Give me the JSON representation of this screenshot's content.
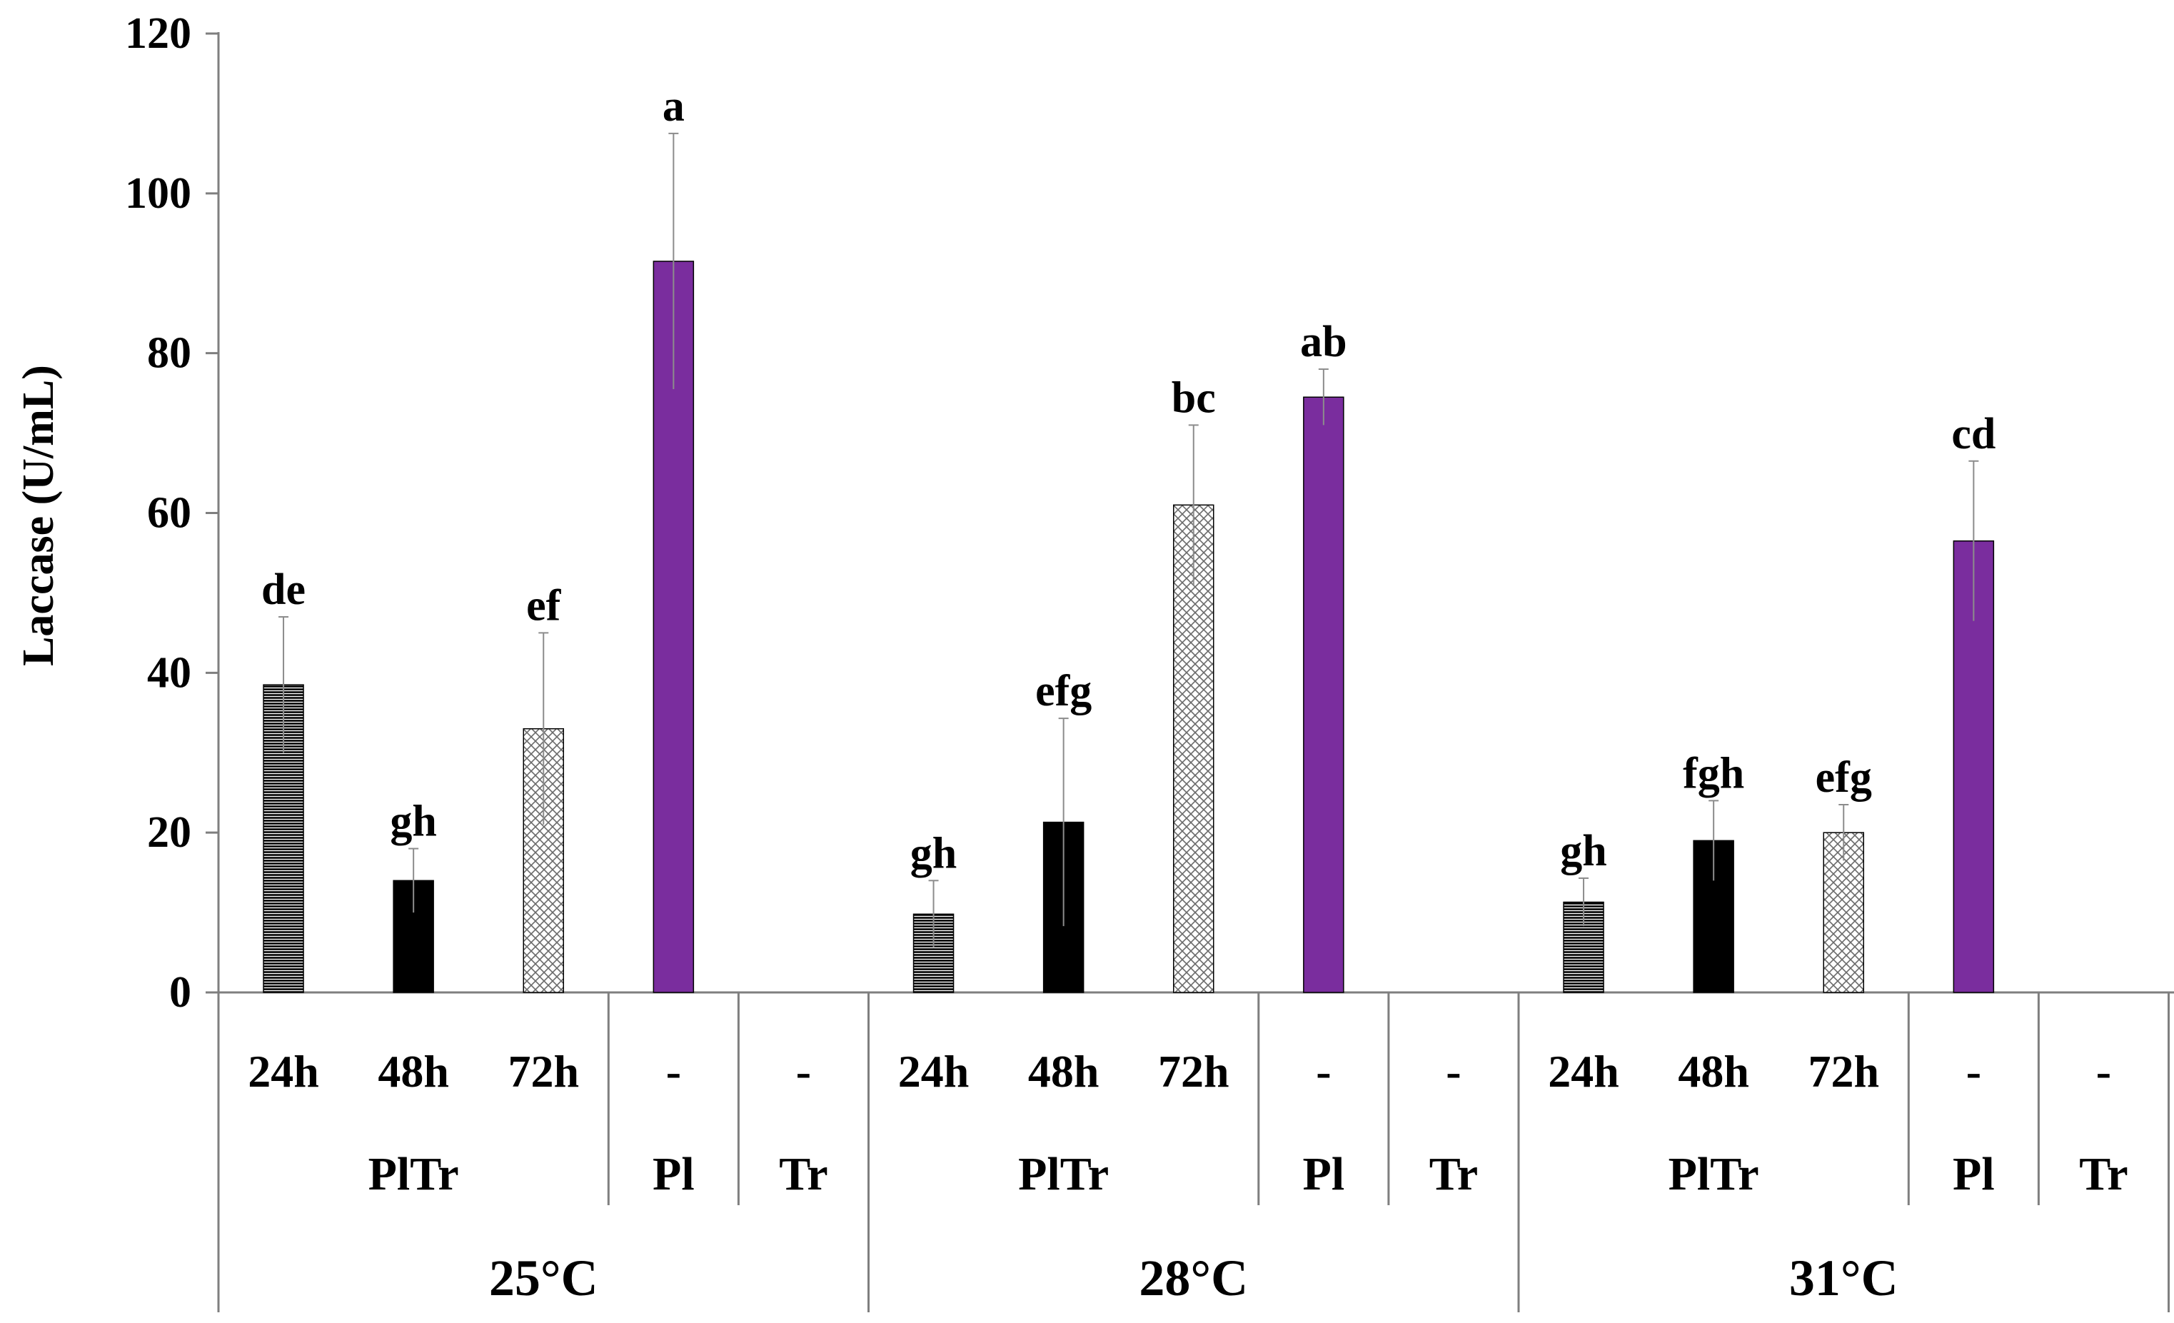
{
  "chart_data": {
    "type": "bar",
    "ylabel": "Laccase (U/mL)",
    "ylim": [
      0,
      120
    ],
    "yticks": [
      0,
      20,
      40,
      60,
      80,
      100,
      120
    ],
    "grid": false,
    "legend": "none",
    "temperatures": [
      {
        "label": "25°C",
        "groups": [
          {
            "label": "PlTr",
            "bars": [
              {
                "time": "24h",
                "value": 38.5,
                "error": 8.5,
                "sig": "de",
                "pattern": "hlines"
              },
              {
                "time": "48h",
                "value": 14.0,
                "error": 4.0,
                "sig": "gh",
                "pattern": "solid-black"
              },
              {
                "time": "72h",
                "value": 33.0,
                "error": 12.0,
                "sig": "ef",
                "pattern": "hatch"
              }
            ]
          },
          {
            "label": "Pl",
            "bars": [
              {
                "time": "-",
                "value": 91.5,
                "error": 16.0,
                "sig": "a",
                "pattern": "purple"
              }
            ]
          },
          {
            "label": "Tr",
            "bars": [
              {
                "time": "-",
                "value": 0,
                "error": 0,
                "sig": "",
                "pattern": "none"
              }
            ]
          }
        ]
      },
      {
        "label": "28°C",
        "groups": [
          {
            "label": "PlTr",
            "bars": [
              {
                "time": "24h",
                "value": 9.8,
                "error": 4.2,
                "sig": "gh",
                "pattern": "hlines"
              },
              {
                "time": "48h",
                "value": 21.3,
                "error": 13.0,
                "sig": "efg",
                "pattern": "solid-black"
              },
              {
                "time": "72h",
                "value": 61.0,
                "error": 10.0,
                "sig": "bc",
                "pattern": "hatch"
              }
            ]
          },
          {
            "label": "Pl",
            "bars": [
              {
                "time": "-",
                "value": 74.5,
                "error": 3.5,
                "sig": "ab",
                "pattern": "purple"
              }
            ]
          },
          {
            "label": "Tr",
            "bars": [
              {
                "time": "-",
                "value": 0,
                "error": 0,
                "sig": "",
                "pattern": "none"
              }
            ]
          }
        ]
      },
      {
        "label": "31°C",
        "groups": [
          {
            "label": "PlTr",
            "bars": [
              {
                "time": "24h",
                "value": 11.3,
                "error": 3.0,
                "sig": "gh",
                "pattern": "hlines"
              },
              {
                "time": "48h",
                "value": 19.0,
                "error": 5.0,
                "sig": "fgh",
                "pattern": "solid-black"
              },
              {
                "time": "72h",
                "value": 20.0,
                "error": 3.5,
                "sig": "efg",
                "pattern": "hatch"
              }
            ]
          },
          {
            "label": "Pl",
            "bars": [
              {
                "time": "-",
                "value": 56.5,
                "error": 10.0,
                "sig": "cd",
                "pattern": "purple"
              }
            ]
          },
          {
            "label": "Tr",
            "bars": [
              {
                "time": "-",
                "value": 0,
                "error": 0,
                "sig": "",
                "pattern": "none"
              }
            ]
          }
        ]
      }
    ]
  },
  "colors": {
    "purple": "#7a2d9e",
    "black": "#000000",
    "axis": "#7f7f7f",
    "errorbar": "#8c8c8c"
  }
}
